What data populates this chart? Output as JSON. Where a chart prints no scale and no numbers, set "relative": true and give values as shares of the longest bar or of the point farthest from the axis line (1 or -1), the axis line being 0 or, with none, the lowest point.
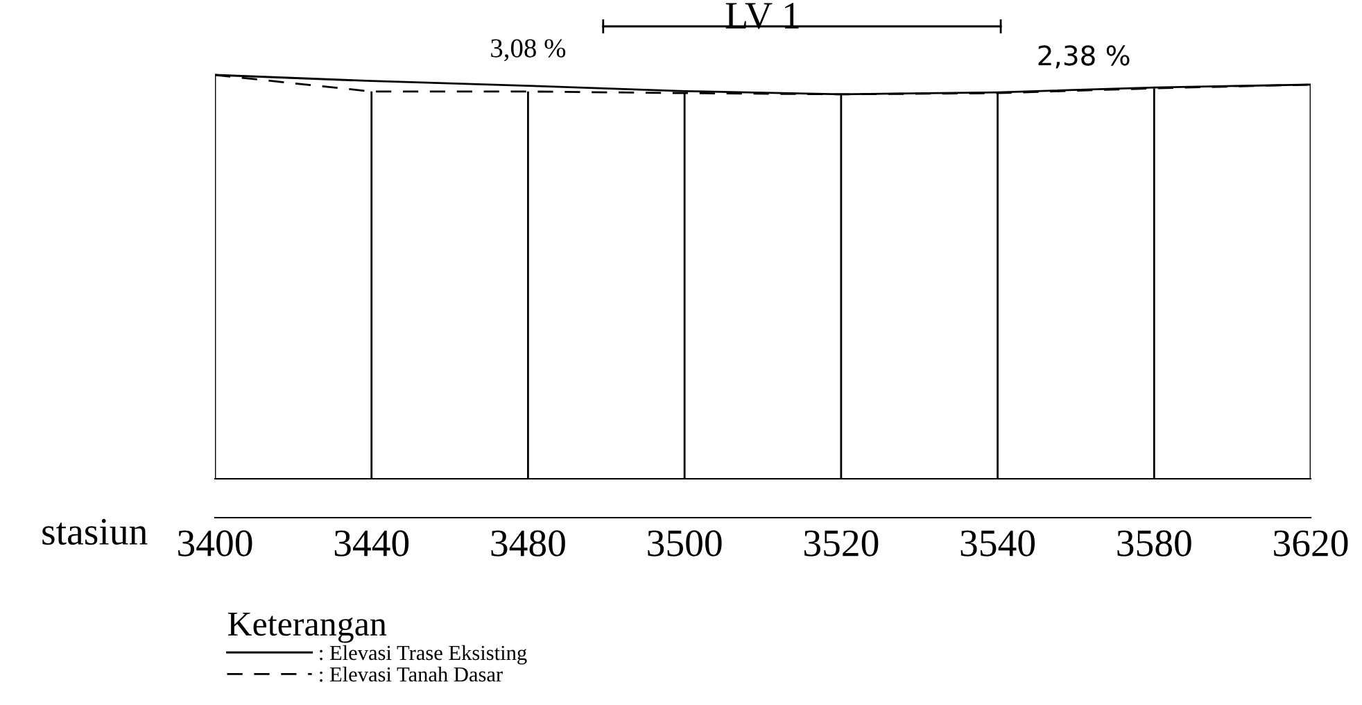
{
  "chart_data": {
    "type": "line",
    "relative": true,
    "categories": [
      "3400",
      "3440",
      "3480",
      "3500",
      "3520",
      "3540",
      "3580",
      "3620"
    ],
    "xlabel": "stasiun",
    "series": [
      {
        "name": ": Elevasi Trase Eksisting",
        "color": "#000000",
        "line_style": "solid",
        "values": [
          1,
          0.985,
          0.973,
          0.96,
          0.952,
          0.957,
          0.969,
          0.976
        ]
      },
      {
        "name": ": Elevasi Tanah Dasar",
        "color": "#000000",
        "line_style": "dashed",
        "values": [
          1,
          0.959,
          0.959,
          0.955,
          0.952,
          0.955,
          0.967,
          0.976
        ]
      }
    ],
    "grid": "x",
    "legend": "bottom left",
    "legend_title": "Keterangan",
    "marker": "none",
    "annotations": [
      "3,08 %",
      "LV 1",
      "2,38 %"
    ]
  }
}
